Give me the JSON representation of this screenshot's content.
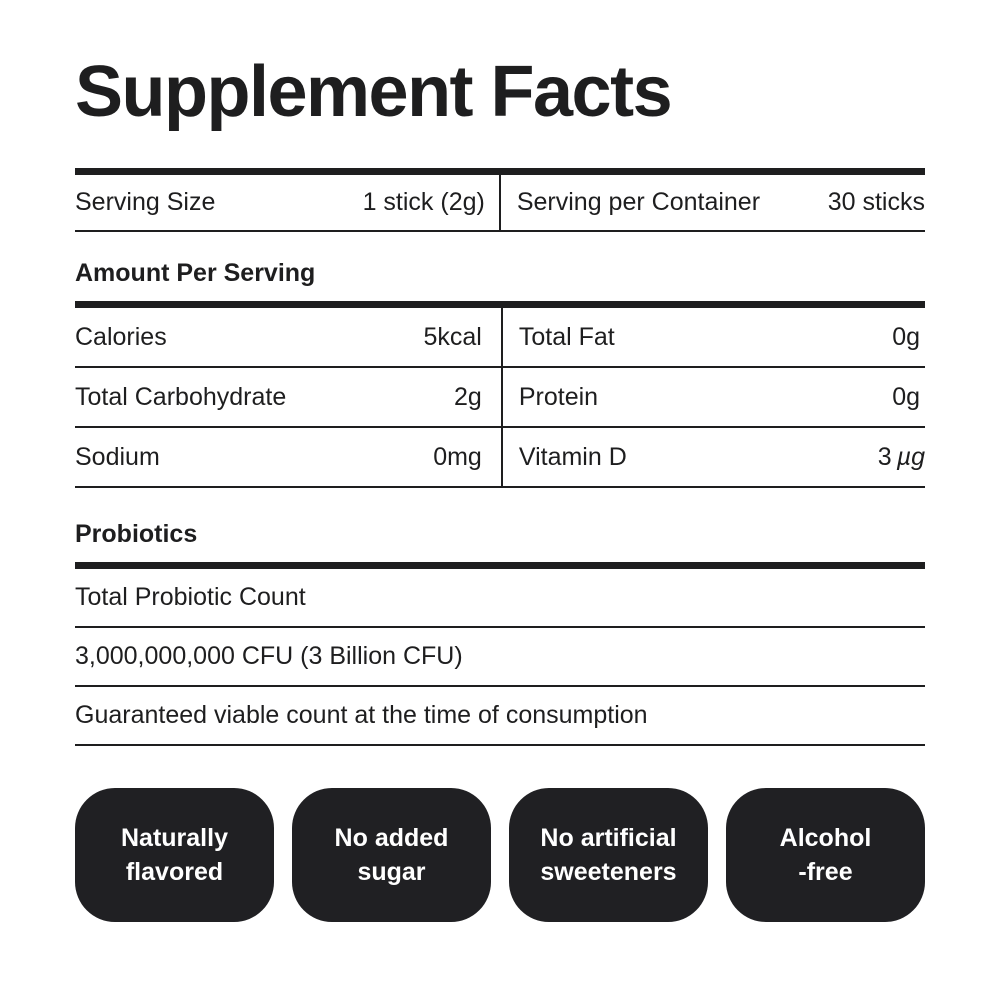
{
  "title": "Supplement Facts",
  "serving_row": {
    "size_label": "Serving Size",
    "size_value": "1 stick (2g)",
    "container_label": "Serving per Container",
    "container_value": "30 sticks"
  },
  "amount_section": {
    "heading": "Amount Per Serving",
    "rows": [
      {
        "left": {
          "label": "Calories",
          "value": "5kcal"
        },
        "right": {
          "label": "Total Fat",
          "value": "0g"
        }
      },
      {
        "left": {
          "label": "Total Carbohydrate",
          "value": "2g"
        },
        "right": {
          "label": "Protein",
          "value": "0g"
        }
      },
      {
        "left": {
          "label": "Sodium",
          "value": "0mg"
        },
        "right": {
          "label": "Vitamin D",
          "value": "3",
          "unit": "µg"
        }
      }
    ]
  },
  "probiotics_section": {
    "heading": "Probiotics",
    "rows": [
      "Total Probiotic Count",
      "3,000,000,000 CFU (3 Billion CFU)",
      "Guaranteed viable count at the time of consumption"
    ]
  },
  "badges": [
    {
      "line1": "Naturally",
      "line2": "flavored"
    },
    {
      "line1": "No added",
      "line2": "sugar"
    },
    {
      "line1": "No artificial",
      "line2": "sweeteners"
    },
    {
      "line1": "Alcohol",
      "line2": "-free"
    }
  ],
  "colors": {
    "ink": "#1e1e1f",
    "rule": "#1e1e1f",
    "badge-bg": "#202023",
    "badge-text": "#ffffff",
    "page-bg": "#ffffff"
  }
}
